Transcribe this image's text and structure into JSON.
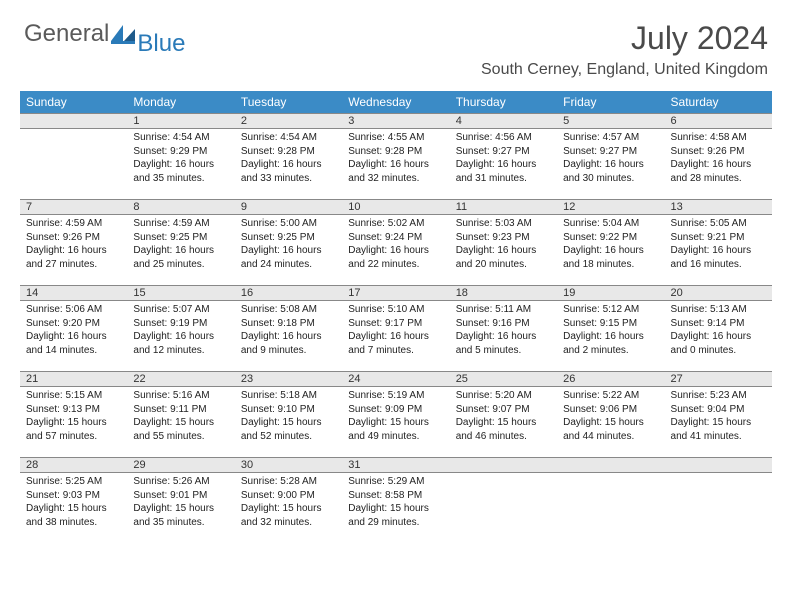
{
  "brand": {
    "general": "General",
    "blue": "Blue",
    "logo_color": "#2a7ab8"
  },
  "header": {
    "month": "July 2024",
    "location": "South Cerney, England, United Kingdom"
  },
  "dayNames": [
    "Sunday",
    "Monday",
    "Tuesday",
    "Wednesday",
    "Thursday",
    "Friday",
    "Saturday"
  ],
  "grid": {
    "startWeekday": 1,
    "daysInMonth": 31
  },
  "days": {
    "1": {
      "sr": "4:54 AM",
      "ss": "9:29 PM",
      "dl": "16 hours and 35 minutes."
    },
    "2": {
      "sr": "4:54 AM",
      "ss": "9:28 PM",
      "dl": "16 hours and 33 minutes."
    },
    "3": {
      "sr": "4:55 AM",
      "ss": "9:28 PM",
      "dl": "16 hours and 32 minutes."
    },
    "4": {
      "sr": "4:56 AM",
      "ss": "9:27 PM",
      "dl": "16 hours and 31 minutes."
    },
    "5": {
      "sr": "4:57 AM",
      "ss": "9:27 PM",
      "dl": "16 hours and 30 minutes."
    },
    "6": {
      "sr": "4:58 AM",
      "ss": "9:26 PM",
      "dl": "16 hours and 28 minutes."
    },
    "7": {
      "sr": "4:59 AM",
      "ss": "9:26 PM",
      "dl": "16 hours and 27 minutes."
    },
    "8": {
      "sr": "4:59 AM",
      "ss": "9:25 PM",
      "dl": "16 hours and 25 minutes."
    },
    "9": {
      "sr": "5:00 AM",
      "ss": "9:25 PM",
      "dl": "16 hours and 24 minutes."
    },
    "10": {
      "sr": "5:02 AM",
      "ss": "9:24 PM",
      "dl": "16 hours and 22 minutes."
    },
    "11": {
      "sr": "5:03 AM",
      "ss": "9:23 PM",
      "dl": "16 hours and 20 minutes."
    },
    "12": {
      "sr": "5:04 AM",
      "ss": "9:22 PM",
      "dl": "16 hours and 18 minutes."
    },
    "13": {
      "sr": "5:05 AM",
      "ss": "9:21 PM",
      "dl": "16 hours and 16 minutes."
    },
    "14": {
      "sr": "5:06 AM",
      "ss": "9:20 PM",
      "dl": "16 hours and 14 minutes."
    },
    "15": {
      "sr": "5:07 AM",
      "ss": "9:19 PM",
      "dl": "16 hours and 12 minutes."
    },
    "16": {
      "sr": "5:08 AM",
      "ss": "9:18 PM",
      "dl": "16 hours and 9 minutes."
    },
    "17": {
      "sr": "5:10 AM",
      "ss": "9:17 PM",
      "dl": "16 hours and 7 minutes."
    },
    "18": {
      "sr": "5:11 AM",
      "ss": "9:16 PM",
      "dl": "16 hours and 5 minutes."
    },
    "19": {
      "sr": "5:12 AM",
      "ss": "9:15 PM",
      "dl": "16 hours and 2 minutes."
    },
    "20": {
      "sr": "5:13 AM",
      "ss": "9:14 PM",
      "dl": "16 hours and 0 minutes."
    },
    "21": {
      "sr": "5:15 AM",
      "ss": "9:13 PM",
      "dl": "15 hours and 57 minutes."
    },
    "22": {
      "sr": "5:16 AM",
      "ss": "9:11 PM",
      "dl": "15 hours and 55 minutes."
    },
    "23": {
      "sr": "5:18 AM",
      "ss": "9:10 PM",
      "dl": "15 hours and 52 minutes."
    },
    "24": {
      "sr": "5:19 AM",
      "ss": "9:09 PM",
      "dl": "15 hours and 49 minutes."
    },
    "25": {
      "sr": "5:20 AM",
      "ss": "9:07 PM",
      "dl": "15 hours and 46 minutes."
    },
    "26": {
      "sr": "5:22 AM",
      "ss": "9:06 PM",
      "dl": "15 hours and 44 minutes."
    },
    "27": {
      "sr": "5:23 AM",
      "ss": "9:04 PM",
      "dl": "15 hours and 41 minutes."
    },
    "28": {
      "sr": "5:25 AM",
      "ss": "9:03 PM",
      "dl": "15 hours and 38 minutes."
    },
    "29": {
      "sr": "5:26 AM",
      "ss": "9:01 PM",
      "dl": "15 hours and 35 minutes."
    },
    "30": {
      "sr": "5:28 AM",
      "ss": "9:00 PM",
      "dl": "15 hours and 32 minutes."
    },
    "31": {
      "sr": "5:29 AM",
      "ss": "8:58 PM",
      "dl": "15 hours and 29 minutes."
    }
  },
  "labels": {
    "sunrise": "Sunrise:",
    "sunset": "Sunset:",
    "daylight": "Daylight:"
  },
  "colors": {
    "headerBg": "#3b8bc6",
    "headerText": "#ffffff",
    "dayBarBg": "#e8e8e8",
    "dayBarBorder": "#888888",
    "bodyText": "#222222"
  }
}
